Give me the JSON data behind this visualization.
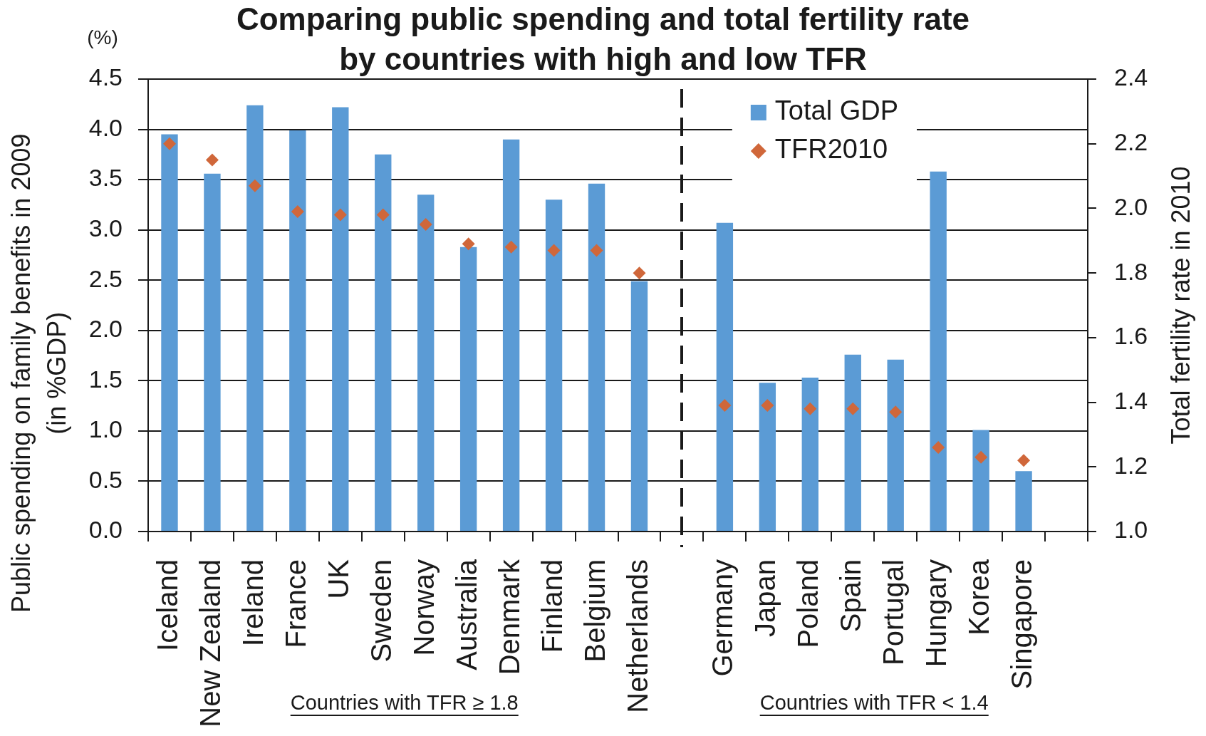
{
  "chart_data": {
    "type": "bar",
    "title": "Comparing public spending and total fertility rate\nby countries with high and low TFR",
    "ylabel": "Public spending on family benefits in 2009\n(in %GDP)",
    "y2label": "Total fertility rate in 2010",
    "categories": [
      "Iceland",
      "New Zealand",
      "Ireland",
      "France",
      "UK",
      "Sweden",
      "Norway",
      "Australia",
      "Denmark",
      "Finland",
      "Belgium",
      "Netherlands",
      null,
      "Germany",
      "Japan",
      "Poland",
      "Spain",
      "Portugal",
      "Hungary",
      "Korea",
      "Singapore",
      null
    ],
    "series": [
      {
        "name": "Total GDP",
        "color": "#5b9bd5",
        "values": [
          3.95,
          3.56,
          4.24,
          3.99,
          4.22,
          3.75,
          3.35,
          2.83,
          3.9,
          3.3,
          3.46,
          2.49,
          null,
          3.07,
          1.48,
          1.53,
          1.76,
          1.71,
          3.58,
          1.01,
          0.6,
          null
        ]
      },
      {
        "name": "TFR2010",
        "type": "scatter",
        "axis": "y2",
        "color": "#d0673a",
        "values": [
          2.2,
          2.15,
          2.07,
          1.99,
          1.98,
          1.98,
          1.95,
          1.89,
          1.88,
          1.87,
          1.87,
          1.8,
          null,
          1.39,
          1.39,
          1.38,
          1.38,
          1.37,
          1.26,
          1.23,
          1.22,
          null
        ]
      }
    ],
    "ylim": [
      0,
      4.5
    ],
    "yticks": [
      {
        "value": 0,
        "label": "0.0"
      },
      0.5,
      {
        "value": 1,
        "label": "1.0"
      },
      1.5,
      {
        "value": 2,
        "label": "2.0"
      },
      2.5,
      {
        "value": 3,
        "label": "3.0"
      },
      3.5,
      {
        "value": 4,
        "label": "4.0"
      },
      4.5
    ],
    "y2lim": [
      1,
      2.4
    ],
    "y2ticks": [
      {
        "value": 1,
        "label": "1.0"
      },
      1.2,
      1.4,
      1.6,
      1.8,
      {
        "value": 2,
        "label": "2.0"
      },
      2.2,
      2.4
    ],
    "grid": "y",
    "legend": "top right",
    "marker": "diamond",
    "annotations": [
      "(%)",
      "Countries with TFR ≥ 1.8",
      "Countries with TFR < 1.4"
    ]
  }
}
